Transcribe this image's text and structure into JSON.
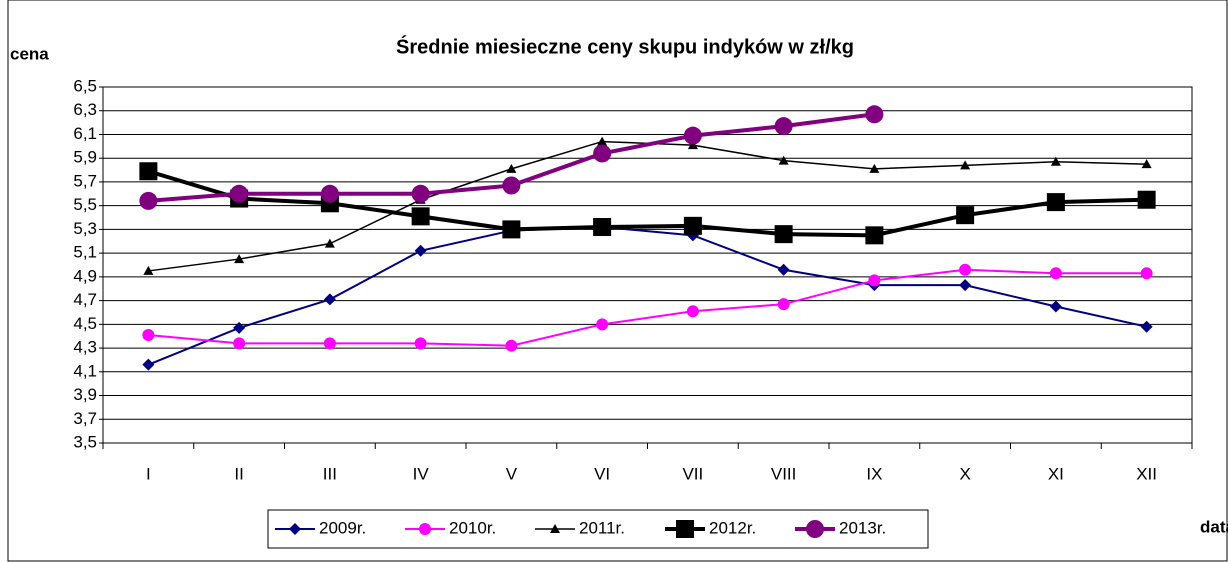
{
  "chart_data": {
    "type": "line",
    "title": "Średnie miesieczne ceny skupu indyków w zł/kg",
    "y_label": "cena",
    "x_label": "data",
    "categories": [
      "I",
      "II",
      "III",
      "IV",
      "V",
      "VI",
      "VII",
      "VIII",
      "IX",
      "X",
      "XI",
      "XII"
    ],
    "series": [
      {
        "name": "2009r.",
        "color": "#000080",
        "marker": "diamond",
        "width": 2,
        "size": 6,
        "values": [
          4.16,
          4.47,
          4.71,
          5.12,
          5.29,
          5.32,
          5.25,
          4.96,
          4.83,
          4.83,
          4.65,
          4.48
        ]
      },
      {
        "name": "2010r.",
        "color": "#ff00ff",
        "marker": "circle",
        "width": 2,
        "size": 6,
        "values": [
          4.41,
          4.34,
          4.34,
          4.34,
          4.32,
          4.5,
          4.61,
          4.67,
          4.87,
          4.96,
          4.93,
          4.93
        ]
      },
      {
        "name": "2011r.",
        "color": "#000000",
        "marker": "triangle",
        "width": 1.5,
        "size": 5,
        "values": [
          4.95,
          5.05,
          5.18,
          5.55,
          5.81,
          6.04,
          6.01,
          5.88,
          5.81,
          5.84,
          5.87,
          5.85
        ]
      },
      {
        "name": "2012r.",
        "color": "#000000",
        "marker": "square",
        "width": 4,
        "size": 9,
        "values": [
          5.79,
          5.56,
          5.52,
          5.41,
          5.3,
          5.32,
          5.33,
          5.26,
          5.25,
          5.42,
          5.53,
          5.55
        ]
      },
      {
        "name": "2013r.",
        "color": "#800080",
        "marker": "circle",
        "width": 4,
        "size": 9,
        "values": [
          5.54,
          5.6,
          5.6,
          5.6,
          5.67,
          5.94,
          6.09,
          6.17,
          6.27,
          null,
          null,
          null
        ]
      }
    ],
    "ylim": [
      3.5,
      6.5
    ],
    "yticks": [
      {
        "value": 3.5,
        "label": "3,5"
      },
      {
        "value": 3.7,
        "label": "3,7"
      },
      {
        "value": 3.9,
        "label": "3,9"
      },
      {
        "value": 4.1,
        "label": "4,1"
      },
      {
        "value": 4.3,
        "label": "4,3"
      },
      {
        "value": 4.5,
        "label": "4,5"
      },
      {
        "value": 4.7,
        "label": "4,7"
      },
      {
        "value": 4.9,
        "label": "4,9"
      },
      {
        "value": 5.1,
        "label": "5,1"
      },
      {
        "value": 5.3,
        "label": "5,3"
      },
      {
        "value": 5.5,
        "label": "5,5"
      },
      {
        "value": 5.7,
        "label": "5,7"
      },
      {
        "value": 5.9,
        "label": "5,9"
      },
      {
        "value": 6.1,
        "label": "6,1"
      },
      {
        "value": 6.3,
        "label": "6,3"
      },
      {
        "value": 6.5,
        "label": "6,5"
      }
    ],
    "grid": true
  }
}
